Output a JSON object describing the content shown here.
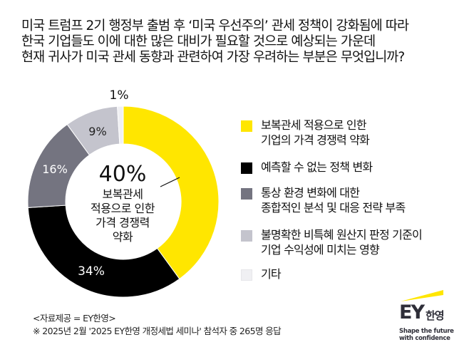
{
  "title": {
    "lines": [
      "미국 트럼프 2기 행정부 출범 후 ‘미국 우선주의’ 관세 정책이 강화됨에 따라",
      "한국 기업들도 이에 대한 많은 대비가 필요할 것으로 예상되는 가운데",
      "현재 귀사가 미국 관세 동향과 관련하여 가장 우려하는 부분은 무엇입니까?"
    ]
  },
  "chart_data": {
    "type": "pie",
    "subtype": "donut",
    "title": "현재 귀사가 미국 관세 동향과 관련하여 가장 우려하는 부분은 무엇입니까?",
    "start_angle": "top (12 o'clock), clockwise",
    "categories": [
      "보복관세 적용으로 인한 기업의 가격 경쟁력 약화",
      "예측할 수 없는 정책 변화",
      "통상 환경 변화에 대한 종합적인 분석 및 대응 전략 부족",
      "불명확한 비특혜 원산지 판정 기준이 기업 수익성에 미치는 영향",
      "기타"
    ],
    "values": [
      40,
      34,
      16,
      9,
      1
    ],
    "unit": "%",
    "colors": [
      "#ffe600",
      "#000000",
      "#747480",
      "#c4c4cd",
      "#f0f0f3"
    ],
    "data_labels": [
      "40%",
      "34%",
      "16%",
      "9%",
      "1%"
    ],
    "legend_position": "right",
    "center_callout": {
      "value": "40%",
      "label": "보복관세 적용으로 인한 가격 경쟁력 약화"
    }
  },
  "center": {
    "value": "40%",
    "lines": [
      "보복관세",
      "적용으로 인한",
      "가격 경쟁력",
      "약화"
    ]
  },
  "labels": {
    "seg0": "",
    "seg1": "34%",
    "seg2": "16%",
    "seg3": "9%",
    "seg4": "1%"
  },
  "legend": [
    {
      "lines": [
        "보복관세 적용으로 인한",
        "기업의 가격 경쟁력 약화"
      ],
      "color": "#ffe600"
    },
    {
      "lines": [
        "예측할 수 없는 정책 변화"
      ],
      "color": "#000000"
    },
    {
      "lines": [
        "통상 환경 변화에 대한",
        "종합적인 분석 및 대응 전략 부족"
      ],
      "color": "#747480"
    },
    {
      "lines": [
        "불명확한 비특혜 원산지 판정 기준이",
        "기업 수익성에 미치는 영향"
      ],
      "color": "#c4c4cd"
    },
    {
      "lines": [
        "기타"
      ],
      "color": "#f0f0f3"
    }
  ],
  "footer": {
    "source": "<자료제공 = EY한영>",
    "note": "※ 2025년 2월 '2025 EY한영 개정세법 세미나' 참석자 중 265명 응답"
  },
  "logo": {
    "brand": "EY",
    "brand_kr": "한영",
    "tagline_line1": "Shape the future",
    "tagline_line2": "with confidence",
    "accent": "#ffe600"
  }
}
